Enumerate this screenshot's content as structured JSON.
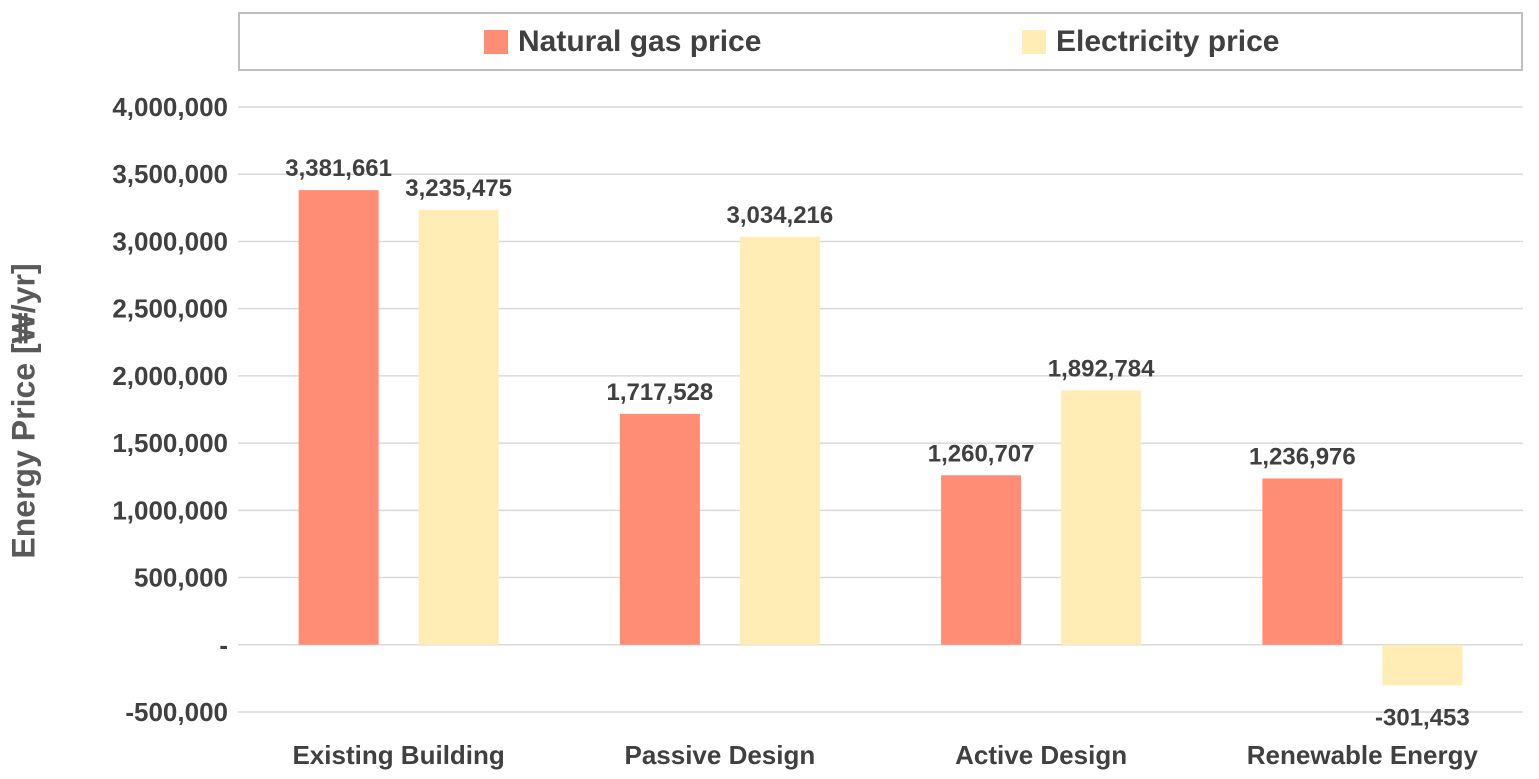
{
  "chart_data": {
    "type": "bar",
    "categories": [
      "Existing Building",
      "Passive Design",
      "Active Design",
      "Renewable Energy"
    ],
    "series": [
      {
        "name": "Natural gas price",
        "values": [
          3381661,
          1717528,
          1260707,
          1236976
        ],
        "labels": [
          "3,381,661",
          "1,717,528",
          "1,260,707",
          "1,236,976"
        ],
        "color": "#FF8C75"
      },
      {
        "name": "Electricity price",
        "values": [
          3235475,
          3034216,
          1892784,
          -301453
        ],
        "labels": [
          "3,235,475",
          "3,034,216",
          "1,892,784",
          "-301,453"
        ],
        "color": "#FFEDB5"
      }
    ],
    "xlabel": "",
    "ylabel": "Energy Price [₩/yr]",
    "ylim": [
      -500000,
      4000000
    ],
    "yticks": [
      -500000,
      0,
      500000,
      1000000,
      1500000,
      2000000,
      2500000,
      3000000,
      3500000,
      4000000
    ],
    "ytick_labels": [
      "-500,000",
      "-",
      "500,000",
      "1,000,000",
      "1,500,000",
      "2,000,000",
      "2,500,000",
      "3,000,000",
      "3,500,000",
      "4,000,000"
    ],
    "grid": true,
    "legend_position": "top"
  },
  "colors": {
    "gridline": "#d9d9d9",
    "text": "#404040",
    "legend_border": "#bfbfbf"
  }
}
